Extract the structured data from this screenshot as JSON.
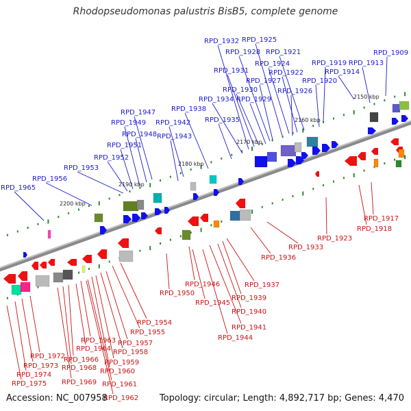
{
  "title": "Rhodopseudomonas palustris BisB5, complete genome",
  "accession": "Accession: NC_007958",
  "topology": "Topology: circular; Length: 4,892,717 bp; Genes: 4,470",
  "colors": {
    "forward_label": "#1a1acc",
    "reverse_label": "#cc1111",
    "backbone": "#8a8a8a",
    "tick": "#2a8a2a"
  },
  "kbp_ticks": [
    "2150 kbp",
    "2160 kbp",
    "2170 kbp",
    "2180 kbp",
    "2190 kbp",
    "2200 kbp"
  ],
  "forward_genes": [
    "RPD_1909",
    "RPD_1913",
    "RPD_1914",
    "RPD_1919",
    "RPD_1920",
    "RPD_1921",
    "RPD_1922",
    "RPD_1924",
    "RPD_1925",
    "RPD_1926",
    "RPD_1927",
    "RPD_1928",
    "RPD_1929",
    "RPD_1930",
    "RPD_1931",
    "RPD_1932",
    "RPD_1934",
    "RPD_1935",
    "RPD_1938",
    "RPD_1942",
    "RPD_1943",
    "RPD_1947",
    "RPD_1948",
    "RPD_1949",
    "RPD_1951",
    "RPD_1952",
    "RPD_1953",
    "RPD_1956",
    "RPD_1965"
  ],
  "reverse_genes": [
    "RPD_1917",
    "RPD_1918",
    "RPD_1923",
    "RPD_1933",
    "RPD_1936",
    "RPD_1937",
    "RPD_1939",
    "RPD_1940",
    "RPD_1941",
    "RPD_1944",
    "RPD_1945",
    "RPD_1946",
    "RPD_1950",
    "RPD_1954",
    "RPD_1955",
    "RPD_1957",
    "RPD_1958",
    "RPD_1959",
    "RPD_1960",
    "RPD_1961",
    "RPD_1962",
    "RPD_1963",
    "RPD_1964",
    "RPD_1966",
    "RPD_1968",
    "RPD_1969",
    "RPD_1972",
    "RPD_1973",
    "RPD_1974",
    "RPD_1975"
  ]
}
